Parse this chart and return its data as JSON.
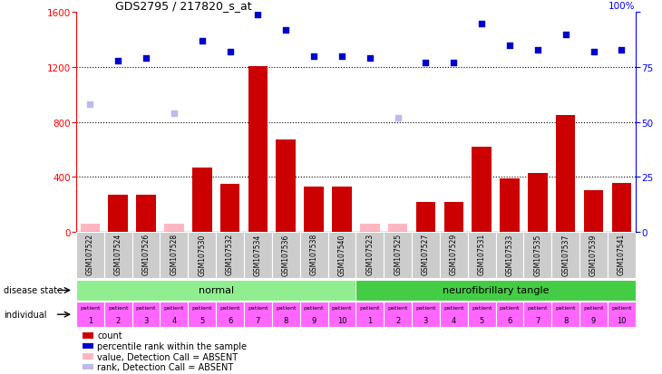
{
  "title": "GDS2795 / 217820_s_at",
  "samples": [
    "GSM107522",
    "GSM107524",
    "GSM107526",
    "GSM107528",
    "GSM107530",
    "GSM107532",
    "GSM107534",
    "GSM107536",
    "GSM107538",
    "GSM107540",
    "GSM107523",
    "GSM107525",
    "GSM107527",
    "GSM107529",
    "GSM107531",
    "GSM107533",
    "GSM107535",
    "GSM107537",
    "GSM107539",
    "GSM107541"
  ],
  "count_values": [
    55,
    270,
    270,
    55,
    470,
    350,
    1210,
    670,
    330,
    330,
    55,
    55,
    215,
    215,
    620,
    390,
    430,
    850,
    300,
    355
  ],
  "absent_count": [
    true,
    false,
    false,
    true,
    false,
    false,
    false,
    false,
    false,
    false,
    true,
    true,
    false,
    false,
    false,
    false,
    false,
    false,
    false,
    false
  ],
  "percentile_values": [
    58,
    78,
    79,
    54,
    87,
    82,
    99,
    92,
    80,
    80,
    79,
    52,
    77,
    77,
    95,
    85,
    83,
    90,
    82,
    83
  ],
  "absent_percentile_flag": [
    true,
    false,
    false,
    true,
    false,
    false,
    false,
    false,
    false,
    false,
    false,
    true,
    false,
    false,
    false,
    false,
    false,
    false,
    false,
    false
  ],
  "disease_groups": [
    {
      "label": "normal",
      "start": 0,
      "end": 10,
      "color": "#90EE90"
    },
    {
      "label": "neurofibrillary tangle",
      "start": 10,
      "end": 20,
      "color": "#44CC44"
    }
  ],
  "patients": [
    "1",
    "2",
    "3",
    "4",
    "5",
    "6",
    "7",
    "8",
    "9",
    "10",
    "1",
    "2",
    "3",
    "4",
    "5",
    "6",
    "7",
    "8",
    "9",
    "10"
  ],
  "ylim_left": [
    0,
    1600
  ],
  "ylim_right": [
    0,
    100
  ],
  "yticks_left": [
    0,
    400,
    800,
    1200,
    1600
  ],
  "yticks_right": [
    0,
    25,
    50,
    75,
    100
  ],
  "bar_color_normal": "#CC0000",
  "bar_color_absent": "#FFB6C1",
  "dot_color_normal": "#0000CC",
  "dot_color_absent": "#BBBBEE",
  "bar_width": 0.7,
  "legend_items": [
    {
      "label": "count",
      "color": "#CC0000"
    },
    {
      "label": "percentile rank within the sample",
      "color": "#0000CC"
    },
    {
      "label": "value, Detection Call = ABSENT",
      "color": "#FFB6C1"
    },
    {
      "label": "rank, Detection Call = ABSENT",
      "color": "#BBBBEE"
    }
  ],
  "individual_row_color": "#FF66FF",
  "gsm_row_color": "#CCCCCC",
  "dot_size": 18
}
